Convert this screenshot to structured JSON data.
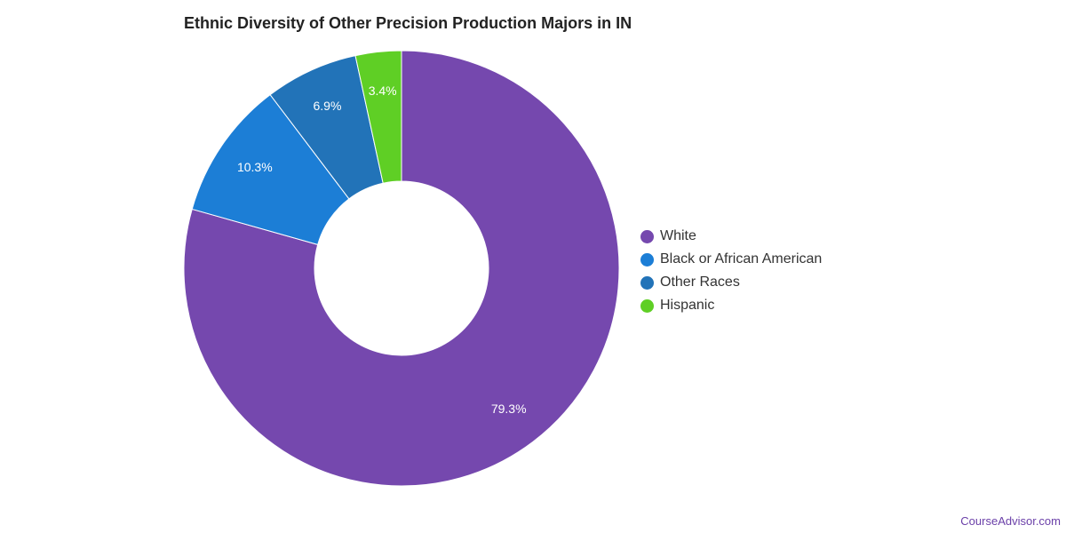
{
  "chart_data": {
    "type": "pie",
    "variant": "donut",
    "title": "Ethnic Diversity of Other Precision Production Majors in IN",
    "unit": "%",
    "categories": [
      "White",
      "Black or African American",
      "Other Races",
      "Hispanic"
    ],
    "values": [
      79.3,
      10.3,
      6.9,
      3.4
    ],
    "labels": [
      "79.3%",
      "10.3%",
      "6.9%",
      "3.4%"
    ],
    "colors": [
      "#7548ae",
      "#1c7ed6",
      "#2273b8",
      "#5fcf25"
    ],
    "legend_position": "right"
  },
  "credit": "CourseAdvisor.com"
}
